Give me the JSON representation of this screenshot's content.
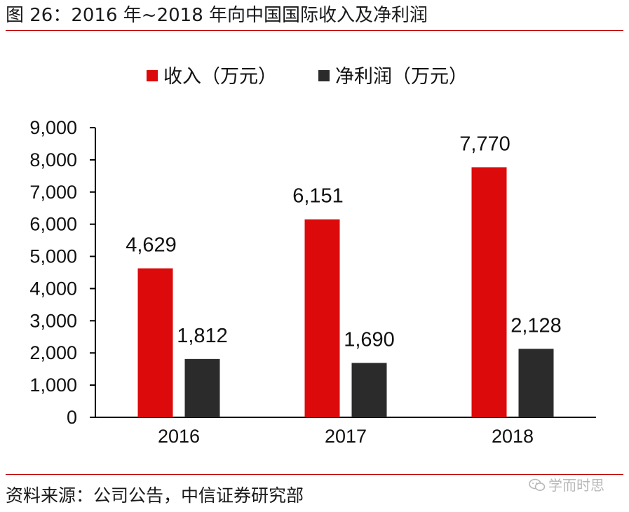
{
  "header": {
    "title": "图 26：2016 年~2018 年向中国国际收入及净利润"
  },
  "footer": {
    "source": "资料来源：公司公告，中信证券研究部",
    "watermark": "学而时思"
  },
  "colors": {
    "revenue": "#dc0a0a",
    "profit": "#2b2b2b",
    "rule": "#c00000"
  },
  "chart_data": {
    "type": "bar",
    "categories": [
      "2016",
      "2017",
      "2018"
    ],
    "series": [
      {
        "name": "收入（万元）",
        "values": [
          4629,
          6151,
          7770
        ],
        "labels": [
          "4,629",
          "6,151",
          "7,770"
        ],
        "color": "#dc0a0a"
      },
      {
        "name": "净利润（万元）",
        "values": [
          1812,
          1690,
          2128
        ],
        "labels": [
          "1,812",
          "1,690",
          "2,128"
        ],
        "color": "#2b2b2b"
      }
    ],
    "ylim": [
      0,
      9000
    ],
    "yticks": [
      0,
      1000,
      2000,
      3000,
      4000,
      5000,
      6000,
      7000,
      8000,
      9000
    ],
    "ytick_labels": [
      "0",
      "1,000",
      "2,000",
      "3,000",
      "4,000",
      "5,000",
      "6,000",
      "7,000",
      "8,000",
      "9,000"
    ],
    "legend_position": "top",
    "grid": false
  }
}
